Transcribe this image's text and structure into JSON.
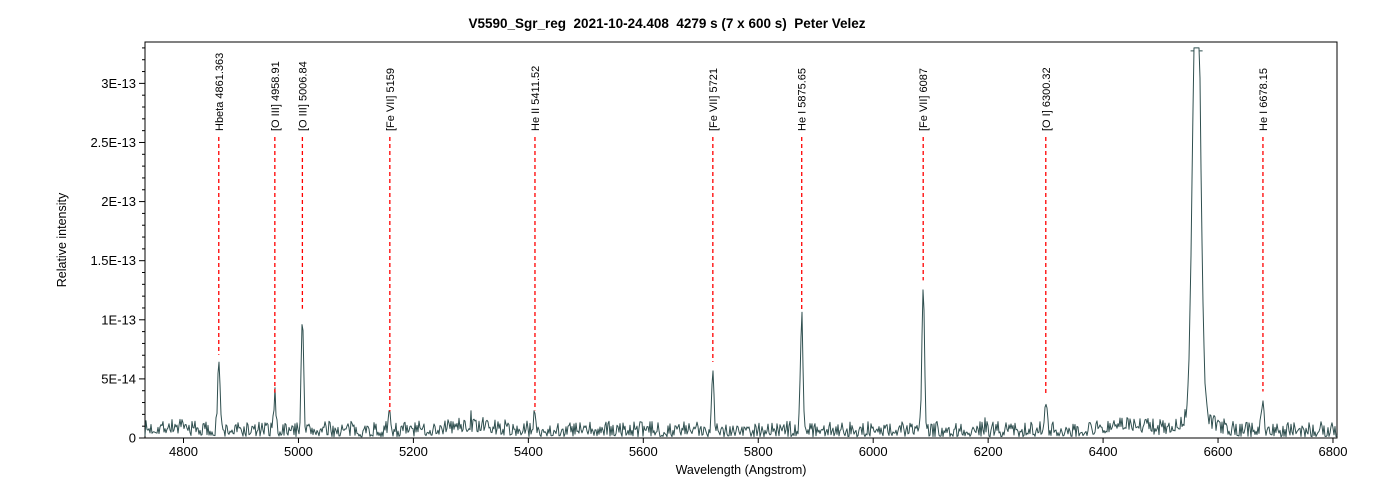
{
  "chart_data": {
    "type": "line",
    "title": "V5590_Sgr_reg  2021-10-24.408  4279 s (7 x 600 s)  Peter Velez",
    "xlabel": "Wavelength (Angstrom)",
    "ylabel": "Relative intensity",
    "xlim": [
      4733,
      6807
    ],
    "ylim": [
      0,
      3.35e-13
    ],
    "x_ticks": [
      4800,
      5000,
      5200,
      5400,
      5600,
      5800,
      6000,
      6200,
      6400,
      6600,
      6800
    ],
    "y_ticks": [
      {
        "value": 0,
        "label": "0"
      },
      {
        "value": 5e-14,
        "label": "5E-14"
      },
      {
        "value": 1e-13,
        "label": "1E-13"
      },
      {
        "value": 1.5e-13,
        "label": "1.5E-13"
      },
      {
        "value": 2e-13,
        "label": "2E-13"
      },
      {
        "value": 2.5e-13,
        "label": "2.5E-13"
      },
      {
        "value": 3e-13,
        "label": "3E-13"
      }
    ],
    "y_minor_step": 1e-14,
    "grid": false,
    "legend": "none",
    "spectrum_color": "#2F4F4F",
    "marker_color": "#FF0000",
    "axis_color": "#000000",
    "continuum_level": 6e-15,
    "noise_amplitude": 4.5e-15,
    "clip_level": 3.3e-13,
    "noise_bumps": [
      {
        "wavelength": 4775,
        "amplitude": 3e-15,
        "sigma": 25
      },
      {
        "wavelength": 5300,
        "amplitude": 4e-15,
        "sigma": 40
      },
      {
        "wavelength": 6440,
        "amplitude": 5e-15,
        "sigma": 35
      }
    ],
    "emission_lines": [
      {
        "label": "Hbeta 4861.363",
        "wavelength": 4861.363,
        "peak_intensity": 6.7e-14,
        "sigma": 2.0,
        "marked": true
      },
      {
        "label": "[O III] 4958.91",
        "wavelength": 4958.91,
        "peak_intensity": 3.5e-14,
        "sigma": 2.0,
        "marked": true
      },
      {
        "label": "[O III] 5006.84",
        "wavelength": 5006.84,
        "peak_intensity": 1.06e-13,
        "sigma": 2.0,
        "marked": true
      },
      {
        "label": "[Fe VII] 5159",
        "wavelength": 5159,
        "peak_intensity": 1.9e-14,
        "sigma": 2.0,
        "marked": true
      },
      {
        "label": "He II 5411.52",
        "wavelength": 5411.52,
        "peak_intensity": 2e-14,
        "sigma": 2.0,
        "marked": true
      },
      {
        "label": "[Fe VII] 5721",
        "wavelength": 5721,
        "peak_intensity": 6.1e-14,
        "sigma": 2.0,
        "marked": true
      },
      {
        "label": "He I 5875.65",
        "wavelength": 5875.65,
        "peak_intensity": 1.05e-13,
        "sigma": 2.2,
        "marked": true
      },
      {
        "label": "[Fe VII] 6087",
        "wavelength": 6087,
        "peak_intensity": 1.3e-13,
        "sigma": 2.2,
        "marked": true
      },
      {
        "label": "[O I] 6300.32",
        "wavelength": 6300.32,
        "peak_intensity": 3.3e-14,
        "sigma": 2.0,
        "marked": true
      },
      {
        "label": "",
        "wavelength": 6562.8,
        "peak_intensity": 3.3e-13,
        "sigma": 6.5,
        "marked": false,
        "clipped_top": true,
        "broad_component": {
          "amplitude": 1.1e-14,
          "sigma": 26
        }
      },
      {
        "label": "He I 6678.15",
        "wavelength": 6678.15,
        "peak_intensity": 3.6e-14,
        "sigma": 2.0,
        "marked": true
      }
    ]
  }
}
